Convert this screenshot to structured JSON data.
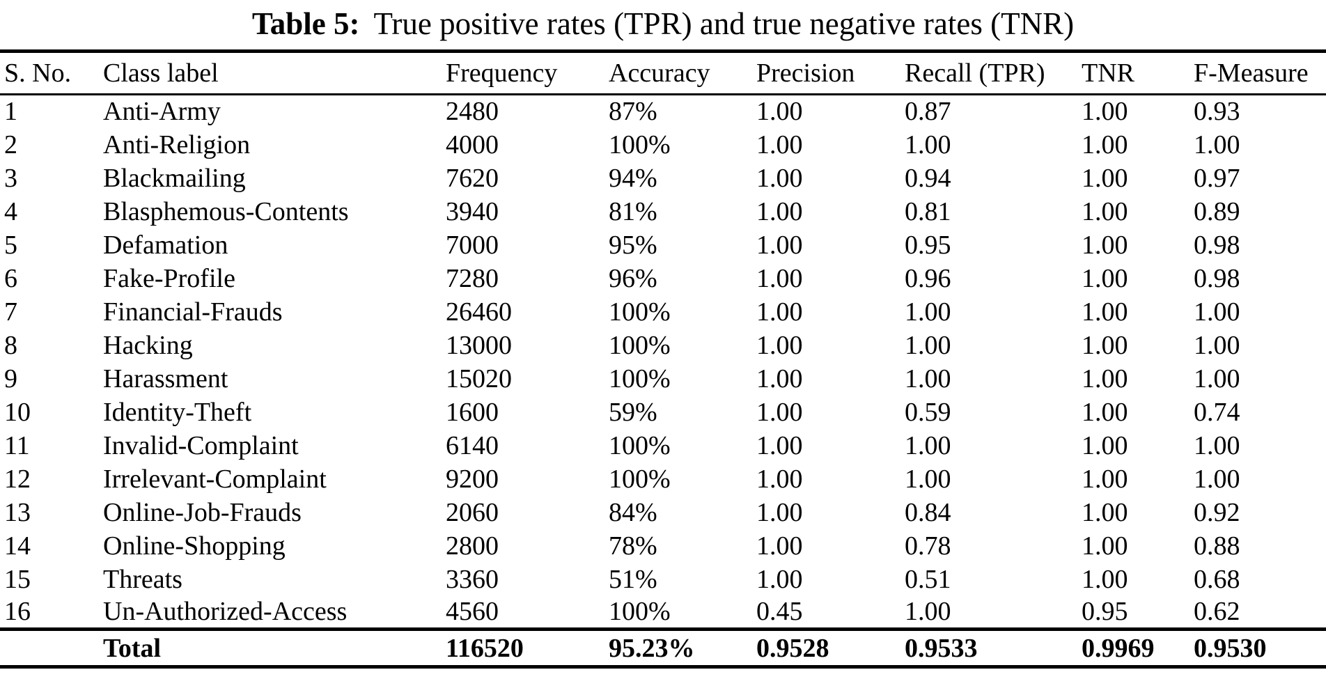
{
  "title": {
    "label": "Table 5:",
    "text": "True positive rates (TPR) and true negative rates (TNR)"
  },
  "table": {
    "columns": [
      "S. No.",
      "Class label",
      "Frequency",
      "Accuracy",
      "Precision",
      "Recall (TPR)",
      "TNR",
      "F-Measure"
    ],
    "rows": [
      [
        "1",
        "Anti-Army",
        "2480",
        "87%",
        "1.00",
        "0.87",
        "1.00",
        "0.93"
      ],
      [
        "2",
        "Anti-Religion",
        "4000",
        "100%",
        "1.00",
        "1.00",
        "1.00",
        "1.00"
      ],
      [
        "3",
        "Blackmailing",
        "7620",
        "94%",
        "1.00",
        "0.94",
        "1.00",
        "0.97"
      ],
      [
        "4",
        "Blasphemous-Contents",
        "3940",
        "81%",
        "1.00",
        "0.81",
        "1.00",
        "0.89"
      ],
      [
        "5",
        "Defamation",
        "7000",
        "95%",
        "1.00",
        "0.95",
        "1.00",
        "0.98"
      ],
      [
        "6",
        "Fake-Profile",
        "7280",
        "96%",
        "1.00",
        "0.96",
        "1.00",
        "0.98"
      ],
      [
        "7",
        "Financial-Frauds",
        "26460",
        "100%",
        "1.00",
        "1.00",
        "1.00",
        "1.00"
      ],
      [
        "8",
        "Hacking",
        "13000",
        "100%",
        "1.00",
        "1.00",
        "1.00",
        "1.00"
      ],
      [
        "9",
        "Harassment",
        "15020",
        "100%",
        "1.00",
        "1.00",
        "1.00",
        "1.00"
      ],
      [
        "10",
        "Identity-Theft",
        "1600",
        "59%",
        "1.00",
        "0.59",
        "1.00",
        "0.74"
      ],
      [
        "11",
        "Invalid-Complaint",
        "6140",
        "100%",
        "1.00",
        "1.00",
        "1.00",
        "1.00"
      ],
      [
        "12",
        "Irrelevant-Complaint",
        "9200",
        "100%",
        "1.00",
        "1.00",
        "1.00",
        "1.00"
      ],
      [
        "13",
        "Online-Job-Frauds",
        "2060",
        "84%",
        "1.00",
        "0.84",
        "1.00",
        "0.92"
      ],
      [
        "14",
        "Online-Shopping",
        "2800",
        "78%",
        "1.00",
        "0.78",
        "1.00",
        "0.88"
      ],
      [
        "15",
        "Threats",
        "3360",
        "51%",
        "1.00",
        "0.51",
        "1.00",
        "0.68"
      ],
      [
        "16",
        "Un-Authorized-Access",
        "4560",
        "100%",
        "0.45",
        "1.00",
        "0.95",
        "0.62"
      ]
    ],
    "total": [
      "",
      "Total",
      "116520",
      "95.23%",
      "0.9528",
      "0.9533",
      "0.9969",
      "0.9530"
    ]
  }
}
